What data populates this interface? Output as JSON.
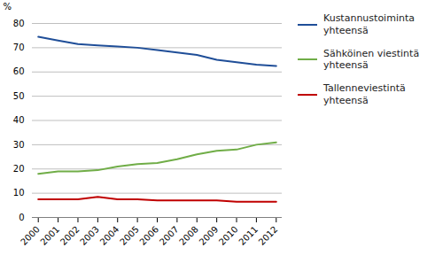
{
  "chart_data": {
    "type": "line",
    "x": [
      2000,
      2001,
      2002,
      2003,
      2004,
      2005,
      2006,
      2007,
      2008,
      2009,
      2010,
      2011,
      2012
    ],
    "series": [
      {
        "name": "Kustannustoiminta\nyhteensä",
        "color": "#1F4E98",
        "values": [
          74.5,
          73.0,
          71.5,
          71.0,
          70.5,
          70.0,
          69.0,
          68.0,
          67.0,
          65.0,
          64.0,
          63.0,
          62.5
        ]
      },
      {
        "name": "Sähköinen viestintä\nyhteensä",
        "color": "#70AD47",
        "values": [
          18.0,
          19.0,
          19.0,
          19.5,
          21.0,
          22.0,
          22.5,
          24.0,
          26.0,
          27.5,
          28.0,
          30.0,
          31.0
        ]
      },
      {
        "name": "Tallenneviestintä\nyhteensä",
        "color": "#C00000",
        "values": [
          7.5,
          7.5,
          7.5,
          8.5,
          7.5,
          7.5,
          7.0,
          7.0,
          7.0,
          7.0,
          6.5,
          6.5,
          6.5
        ]
      }
    ],
    "ylabel": "%",
    "xlim": [
      1999.7,
      2012.3
    ],
    "xticks": [
      2000,
      2001,
      2002,
      2003,
      2004,
      2005,
      2006,
      2007,
      2008,
      2009,
      2010,
      2011,
      2012
    ],
    "ylim": [
      0,
      80
    ],
    "yticks": [
      0,
      10,
      20,
      30,
      40,
      50,
      60,
      70,
      80
    ],
    "grid": "y",
    "legend": "right"
  }
}
